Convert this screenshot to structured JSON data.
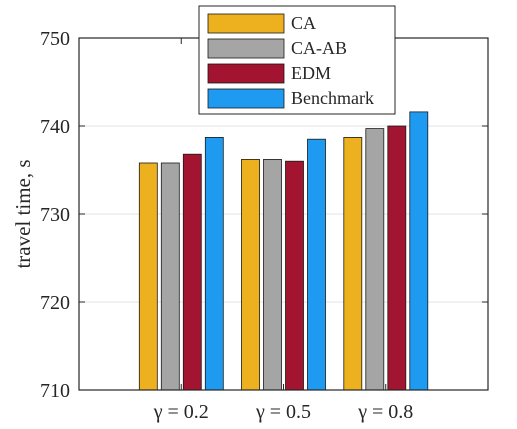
{
  "chart_data": {
    "type": "bar",
    "categories": [
      "γ = 0.2",
      "γ = 0.5",
      "γ = 0.8"
    ],
    "series": [
      {
        "name": "CA",
        "values": [
          735.8,
          736.2,
          738.7
        ],
        "color": "#EDB120"
      },
      {
        "name": "CA-AB",
        "values": [
          735.8,
          736.2,
          739.7
        ],
        "color": "#A5A5A5"
      },
      {
        "name": "EDM",
        "values": [
          736.8,
          736.0,
          740.0
        ],
        "color": "#A2142F"
      },
      {
        "name": "Benchmark",
        "values": [
          738.7,
          738.5,
          741.6
        ],
        "color": "#1E9BF0"
      }
    ],
    "ylabel": "travel time, s",
    "xlabel": "",
    "ylim": [
      710,
      750
    ],
    "yticks": [
      710,
      720,
      730,
      740,
      750
    ],
    "grid": "horizontal",
    "legend_position": "top"
  }
}
